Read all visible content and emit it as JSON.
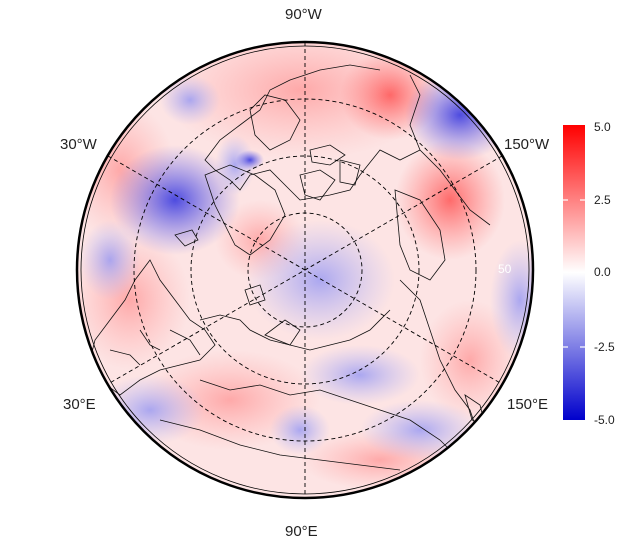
{
  "map": {
    "projection": "north-polar-stereographic",
    "longitude_labels": {
      "top": "90°W",
      "bottom": "90°E",
      "upper_left": "30°W",
      "upper_right": "150°W",
      "lower_left": "30°E",
      "lower_right": "150°E"
    },
    "inner_circle_label": "50"
  },
  "colorbar": {
    "ticks": [
      "5.0",
      "2.5",
      "0.0",
      "-2.5",
      "-5.0"
    ],
    "min": -5.0,
    "max": 5.0,
    "colors": {
      "low": "#0000cc",
      "mid": "#ffffff",
      "high": "#ff0000"
    }
  }
}
